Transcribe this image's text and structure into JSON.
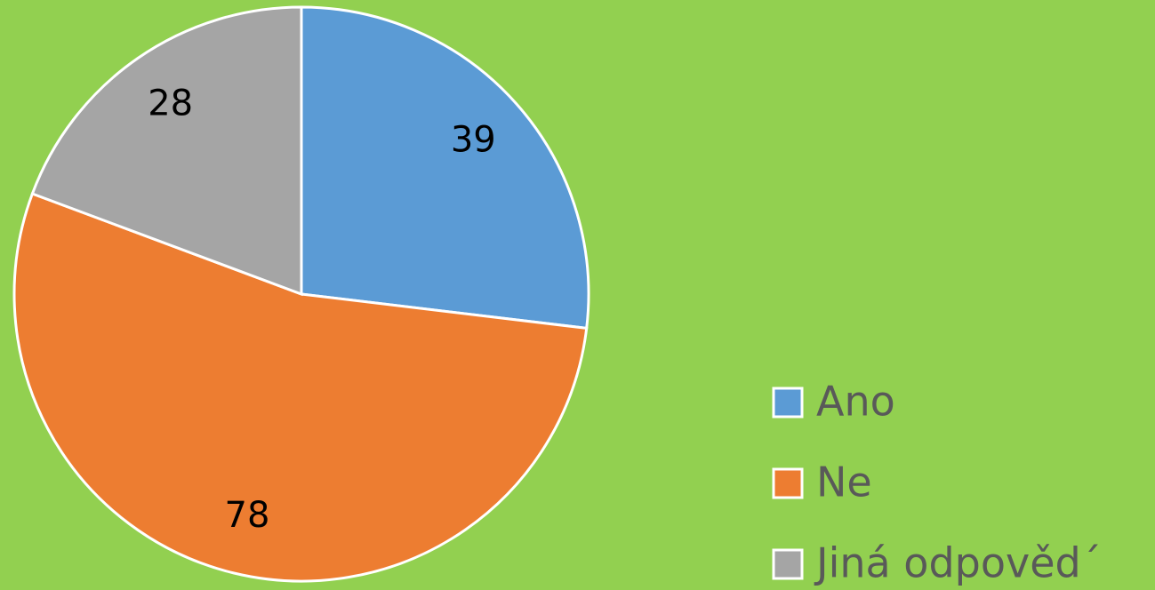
{
  "chart_data": {
    "type": "pie",
    "categories": [
      "Ano",
      "Ne",
      "Jiná odpověd´"
    ],
    "values": [
      39,
      78,
      28
    ],
    "colors": [
      "#5b9bd5",
      "#ed7d31",
      "#a5a5a5"
    ],
    "legend": "right"
  }
}
